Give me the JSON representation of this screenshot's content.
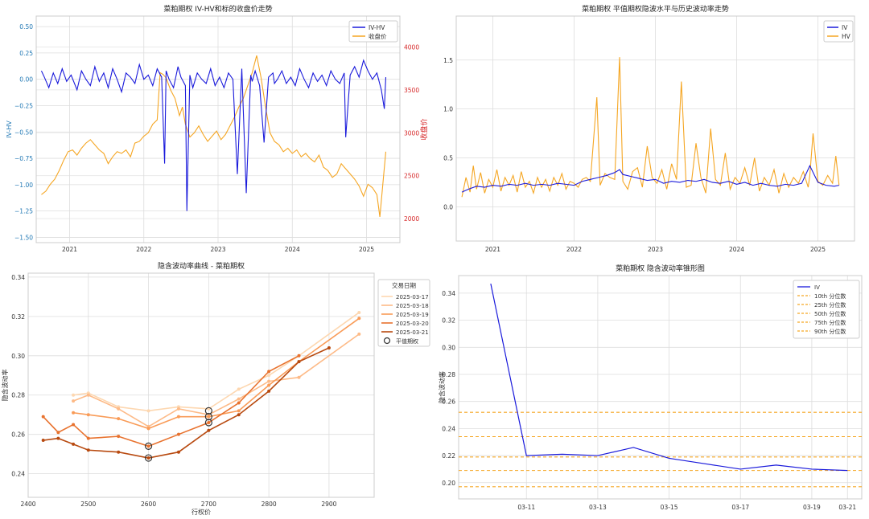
{
  "chart_data": [
    {
      "type": "line",
      "title": "菜粕期权 IV-HV和标的收盘价走势",
      "ylabel": "IV-HV",
      "y2label": "收盘价",
      "ylim": [
        -1.55,
        0.6
      ],
      "y2lim": [
        1720,
        4360
      ],
      "xlim": [
        2020.55,
        2025.45
      ],
      "x_ticks": [
        "2021",
        "2022",
        "2023",
        "2024",
        "2025"
      ],
      "y_ticks": [
        "0.50",
        "0.25",
        "0.00",
        "−0.25",
        "−0.50",
        "−0.75",
        "−1.00",
        "−1.25",
        "−1.50"
      ],
      "y2_ticks": [
        "4000",
        "3500",
        "3000",
        "2500",
        "2000"
      ],
      "legend": {
        "position": "top-right",
        "items": [
          "IV-HV",
          "收盘价"
        ]
      },
      "colors": {
        "iv_hv": "#1a1adb",
        "close": "#f5a623",
        "left_axis": "#1f77b4",
        "right_axis": "#d62728"
      },
      "series": [
        {
          "name": "IV-HV",
          "axis": "left",
          "x": [
            2020.62,
            2020.66,
            2020.72,
            2020.78,
            2020.84,
            2020.9,
            2020.96,
            2021.02,
            2021.1,
            2021.16,
            2021.22,
            2021.28,
            2021.34,
            2021.4,
            2021.46,
            2021.52,
            2021.58,
            2021.64,
            2021.7,
            2021.76,
            2021.82,
            2021.88,
            2021.94,
            2022.0,
            2022.06,
            2022.12,
            2022.18,
            2022.24,
            2022.28,
            2022.3,
            2022.34,
            2022.4,
            2022.46,
            2022.5,
            2022.56,
            2022.58,
            2022.62,
            2022.66,
            2022.72,
            2022.78,
            2022.84,
            2022.9,
            2022.96,
            2023.02,
            2023.08,
            2023.14,
            2023.2,
            2023.26,
            2023.32,
            2023.38,
            2023.44,
            2023.46,
            2023.5,
            2023.56,
            2023.62,
            2023.68,
            2023.74,
            2023.76,
            2023.8,
            2023.86,
            2023.92,
            2023.98,
            2024.04,
            2024.1,
            2024.16,
            2024.22,
            2024.28,
            2024.34,
            2024.4,
            2024.46,
            2024.52,
            2024.58,
            2024.64,
            2024.7,
            2024.72,
            2024.78,
            2024.84,
            2024.9,
            2024.96,
            2025.02,
            2025.08,
            2025.14,
            2025.2,
            2025.24,
            2025.26
          ],
          "y": [
            0.08,
            0.02,
            -0.08,
            0.06,
            -0.04,
            0.1,
            -0.02,
            0.04,
            -0.1,
            0.08,
            0.0,
            -0.06,
            0.12,
            -0.02,
            0.06,
            -0.08,
            0.1,
            0.0,
            -0.12,
            0.06,
            0.02,
            -0.04,
            0.14,
            0.0,
            0.04,
            -0.06,
            0.1,
            0.02,
            -0.8,
            0.08,
            0.0,
            -0.08,
            0.12,
            0.02,
            -0.06,
            -1.25,
            0.04,
            -0.08,
            0.06,
            0.0,
            -0.04,
            0.1,
            -0.06,
            0.02,
            -0.08,
            0.06,
            0.0,
            -0.9,
            0.1,
            -1.08,
            0.04,
            -0.02,
            0.08,
            -0.06,
            -0.6,
            0.02,
            0.06,
            -0.04,
            0.0,
            0.08,
            -0.04,
            0.02,
            -0.06,
            0.1,
            0.0,
            -0.08,
            0.06,
            -0.02,
            0.04,
            -0.06,
            0.08,
            0.0,
            -0.04,
            0.06,
            -0.55,
            0.04,
            0.12,
            0.02,
            0.18,
            0.08,
            0.0,
            0.06,
            -0.1,
            -0.28,
            0.02
          ]
        },
        {
          "name": "收盘价",
          "axis": "right",
          "x": [
            2020.62,
            2020.68,
            2020.74,
            2020.8,
            2020.86,
            2020.92,
            2020.98,
            2021.04,
            2021.1,
            2021.16,
            2021.22,
            2021.28,
            2021.34,
            2021.4,
            2021.46,
            2021.52,
            2021.58,
            2021.64,
            2021.7,
            2021.76,
            2021.82,
            2021.88,
            2021.94,
            2022.0,
            2022.06,
            2022.12,
            2022.18,
            2022.22,
            2022.26,
            2022.3,
            2022.36,
            2022.42,
            2022.48,
            2022.52,
            2022.56,
            2022.62,
            2022.68,
            2022.74,
            2022.8,
            2022.86,
            2022.92,
            2022.98,
            2023.04,
            2023.1,
            2023.16,
            2023.22,
            2023.28,
            2023.34,
            2023.4,
            2023.46,
            2023.52,
            2023.58,
            2023.64,
            2023.7,
            2023.76,
            2023.82,
            2023.88,
            2023.94,
            2024.0,
            2024.06,
            2024.12,
            2024.18,
            2024.24,
            2024.3,
            2024.36,
            2024.42,
            2024.48,
            2024.54,
            2024.6,
            2024.66,
            2024.72,
            2024.78,
            2024.84,
            2024.9,
            2024.96,
            2025.02,
            2025.08,
            2025.14,
            2025.18,
            2025.22,
            2025.26
          ],
          "y": [
            2280,
            2320,
            2400,
            2460,
            2560,
            2680,
            2780,
            2800,
            2740,
            2820,
            2880,
            2920,
            2860,
            2800,
            2760,
            2640,
            2720,
            2780,
            2760,
            2800,
            2720,
            2880,
            2900,
            2960,
            3000,
            3100,
            3150,
            3700,
            3680,
            3640,
            3500,
            3400,
            3200,
            3300,
            3100,
            2950,
            3000,
            3080,
            2980,
            2900,
            2960,
            3020,
            2920,
            2980,
            3080,
            3180,
            3300,
            3400,
            3550,
            3700,
            3900,
            3640,
            3300,
            3000,
            2900,
            2860,
            2780,
            2820,
            2760,
            2800,
            2720,
            2760,
            2700,
            2660,
            2740,
            2600,
            2560,
            2480,
            2520,
            2640,
            2580,
            2520,
            2460,
            2380,
            2260,
            2400,
            2360,
            2280,
            2020,
            2400,
            2780
          ]
        }
      ]
    },
    {
      "type": "line",
      "title": "菜粕期权 平值期权隐波水平与历史波动率走势",
      "ylim": [
        -0.35,
        1.95
      ],
      "xlim": [
        2020.55,
        2025.45
      ],
      "x_ticks": [
        "2021",
        "2022",
        "2023",
        "2024",
        "2025"
      ],
      "y_ticks": [
        "1.5",
        "1.0",
        "0.5",
        "0.0"
      ],
      "legend": {
        "position": "top-right",
        "items": [
          "IV",
          "HV"
        ]
      },
      "colors": {
        "iv": "#1a1adb",
        "hv": "#f5a623"
      },
      "series": [
        {
          "name": "IV",
          "x": [
            2020.62,
            2020.7,
            2020.8,
            2020.9,
            2021.0,
            2021.1,
            2021.2,
            2021.3,
            2021.4,
            2021.5,
            2021.6,
            2021.7,
            2021.8,
            2021.9,
            2022.0,
            2022.1,
            2022.2,
            2022.3,
            2022.4,
            2022.5,
            2022.56,
            2022.6,
            2022.7,
            2022.8,
            2022.9,
            2023.0,
            2023.1,
            2023.2,
            2023.3,
            2023.4,
            2023.5,
            2023.6,
            2023.7,
            2023.8,
            2023.9,
            2024.0,
            2024.1,
            2024.2,
            2024.3,
            2024.4,
            2024.5,
            2024.6,
            2024.7,
            2024.8,
            2024.9,
            2025.0,
            2025.1,
            2025.2,
            2025.26
          ],
          "y": [
            0.15,
            0.18,
            0.21,
            0.2,
            0.22,
            0.21,
            0.23,
            0.22,
            0.24,
            0.22,
            0.23,
            0.22,
            0.24,
            0.23,
            0.22,
            0.26,
            0.28,
            0.3,
            0.32,
            0.35,
            0.38,
            0.33,
            0.31,
            0.29,
            0.27,
            0.28,
            0.24,
            0.26,
            0.25,
            0.27,
            0.26,
            0.28,
            0.25,
            0.24,
            0.26,
            0.23,
            0.25,
            0.22,
            0.24,
            0.22,
            0.21,
            0.23,
            0.22,
            0.24,
            0.42,
            0.25,
            0.22,
            0.21,
            0.22
          ]
        },
        {
          "name": "HV",
          "x": [
            2020.62,
            2020.67,
            2020.72,
            2020.76,
            2020.8,
            2020.85,
            2020.9,
            2020.95,
            2021.0,
            2021.05,
            2021.1,
            2021.15,
            2021.2,
            2021.25,
            2021.3,
            2021.35,
            2021.4,
            2021.45,
            2021.5,
            2021.55,
            2021.6,
            2021.65,
            2021.7,
            2021.75,
            2021.8,
            2021.85,
            2021.9,
            2021.95,
            2022.0,
            2022.05,
            2022.1,
            2022.15,
            2022.2,
            2022.28,
            2022.32,
            2022.38,
            2022.44,
            2022.5,
            2022.56,
            2022.6,
            2022.66,
            2022.72,
            2022.78,
            2022.84,
            2022.9,
            2022.96,
            2023.02,
            2023.08,
            2023.14,
            2023.2,
            2023.26,
            2023.32,
            2023.38,
            2023.44,
            2023.5,
            2023.56,
            2023.62,
            2023.68,
            2023.74,
            2023.8,
            2023.86,
            2023.92,
            2023.98,
            2024.04,
            2024.1,
            2024.16,
            2024.22,
            2024.28,
            2024.34,
            2024.4,
            2024.46,
            2024.52,
            2024.58,
            2024.64,
            2024.7,
            2024.76,
            2024.82,
            2024.88,
            2024.9,
            2024.94,
            2025.0,
            2025.06,
            2025.12,
            2025.18,
            2025.22,
            2025.26
          ],
          "y": [
            0.1,
            0.3,
            0.15,
            0.42,
            0.18,
            0.35,
            0.14,
            0.28,
            0.2,
            0.38,
            0.16,
            0.3,
            0.22,
            0.32,
            0.15,
            0.36,
            0.2,
            0.26,
            0.14,
            0.3,
            0.2,
            0.28,
            0.16,
            0.3,
            0.22,
            0.34,
            0.18,
            0.26,
            0.24,
            0.2,
            0.28,
            0.3,
            0.26,
            1.12,
            0.22,
            0.34,
            0.3,
            0.28,
            1.53,
            0.26,
            0.18,
            0.36,
            0.4,
            0.2,
            0.62,
            0.3,
            0.24,
            0.38,
            0.18,
            0.44,
            0.28,
            1.28,
            0.2,
            0.22,
            0.65,
            0.3,
            0.14,
            0.8,
            0.28,
            0.22,
            0.55,
            0.18,
            0.3,
            0.24,
            0.4,
            0.22,
            0.5,
            0.16,
            0.3,
            0.22,
            0.38,
            0.14,
            0.34,
            0.2,
            0.3,
            0.24,
            0.36,
            0.2,
            0.32,
            0.75,
            0.26,
            0.22,
            0.32,
            0.24,
            0.52,
            0.22
          ]
        }
      ]
    },
    {
      "type": "line",
      "title": "隐含波动率曲线 - 菜粕期权",
      "xlabel": "行权价",
      "ylabel": "隐含波动率",
      "xlim": [
        2400,
        2975
      ],
      "ylim": [
        0.228,
        0.342
      ],
      "x_ticks": [
        "2400",
        "2500",
        "2600",
        "2700",
        "2800",
        "2900"
      ],
      "y_ticks": [
        "0.34",
        "0.32",
        "0.30",
        "0.28",
        "0.26",
        "0.24"
      ],
      "legend": {
        "position": "top-right",
        "title": "交易日期",
        "atm_label": "平值期权"
      },
      "atm_strike": 2600,
      "series": [
        {
          "name": "2025-03-17",
          "color": "#fdd7b0",
          "x": [
            2475,
            2500,
            2550,
            2600,
            2650,
            2700,
            2750,
            2800,
            2850,
            2950
          ],
          "y": [
            0.28,
            0.281,
            0.274,
            0.272,
            0.274,
            0.273,
            0.283,
            0.29,
            0.3,
            0.322
          ]
        },
        {
          "name": "2025-03-18",
          "color": "#fdba87",
          "x": [
            2475,
            2500,
            2550,
            2600,
            2650,
            2700,
            2750,
            2800,
            2850,
            2950
          ],
          "y": [
            0.277,
            0.28,
            0.273,
            0.264,
            0.273,
            0.27,
            0.278,
            0.287,
            0.289,
            0.311
          ]
        },
        {
          "name": "2025-03-19",
          "color": "#f99b57",
          "x": [
            2475,
            2500,
            2550,
            2600,
            2650,
            2700,
            2750,
            2800,
            2850,
            2950
          ],
          "y": [
            0.271,
            0.27,
            0.268,
            0.263,
            0.269,
            0.269,
            0.272,
            0.285,
            0.297,
            0.319
          ]
        },
        {
          "name": "2025-03-20",
          "color": "#e8722e",
          "x": [
            2425,
            2450,
            2475,
            2500,
            2550,
            2600,
            2650,
            2700,
            2750,
            2800,
            2850
          ],
          "y": [
            0.269,
            0.261,
            0.265,
            0.258,
            0.259,
            0.254,
            0.26,
            0.266,
            0.276,
            0.292,
            0.3
          ]
        },
        {
          "name": "2025-03-21",
          "color": "#b84a10",
          "x": [
            2425,
            2450,
            2475,
            2500,
            2550,
            2600,
            2650,
            2700,
            2750,
            2800,
            2850,
            2900
          ],
          "y": [
            0.257,
            0.258,
            0.255,
            0.252,
            0.251,
            0.248,
            0.251,
            0.262,
            0.27,
            0.282,
            0.297,
            0.304
          ]
        }
      ],
      "atm_points": [
        {
          "x": 2600,
          "y": 0.254
        },
        {
          "x": 2600,
          "y": 0.248
        },
        {
          "x": 2700,
          "y": 0.272
        },
        {
          "x": 2700,
          "y": 0.269
        },
        {
          "x": 2700,
          "y": 0.266
        }
      ]
    },
    {
      "type": "line",
      "title": "菜粕期权 隐含波动率锥形图",
      "ylabel": "隐含波动率",
      "xlim": [
        -0.9,
        10.4
      ],
      "ylim": [
        0.188,
        0.353
      ],
      "x_ticks": [
        "03-11",
        "03-13",
        "03-15",
        "03-17",
        "03-19",
        "03-21"
      ],
      "y_ticks": [
        "0.34",
        "0.32",
        "0.30",
        "0.28",
        "0.26",
        "0.24",
        "0.22",
        "0.20"
      ],
      "legend": {
        "position": "top-right",
        "items": [
          "IV",
          "10th 分位数",
          "25th 分位数",
          "50th 分位数",
          "75th 分位数",
          "90th 分位数"
        ]
      },
      "colors": {
        "iv": "#1a1adb",
        "percentile": "#f5a623"
      },
      "series": [
        {
          "name": "IV",
          "x": [
            0,
            1,
            2,
            3,
            4,
            5,
            6,
            7,
            8,
            9,
            10
          ],
          "y": [
            0.347,
            0.22,
            0.221,
            0.22,
            0.226,
            0.218,
            0.214,
            0.21,
            0.213,
            0.21,
            0.209
          ]
        }
      ],
      "percentiles": [
        {
          "name": "10th 分位数",
          "value": 0.197
        },
        {
          "name": "25th 分位数",
          "value": 0.209
        },
        {
          "name": "50th 分位数",
          "value": 0.219
        },
        {
          "name": "75th 分位数",
          "value": 0.234
        },
        {
          "name": "90th 分位数",
          "value": 0.252
        }
      ]
    }
  ]
}
